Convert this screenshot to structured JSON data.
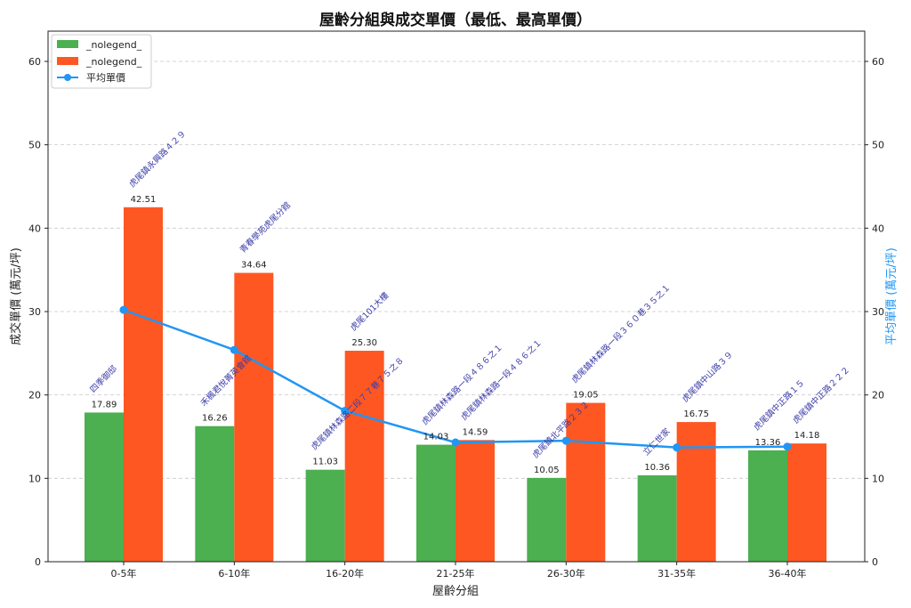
{
  "chart_data": {
    "type": "bar",
    "title": "屋齡分組與成交單價（最低、最高單價）",
    "xlabel": "屋齡分組",
    "ylabel": "成交單價 (萬元/坪)",
    "ylabel_right": "平均單價 (萬元/坪)",
    "ylim": [
      0,
      63.6
    ],
    "y_ticks": [
      0,
      10,
      20,
      30,
      40,
      50,
      60
    ],
    "grid": "horizontal dashed",
    "legend_position": "upper left",
    "categories": [
      "0-5年",
      "6-10年",
      "16-20年",
      "21-25年",
      "26-30年",
      "31-35年",
      "36-40年"
    ],
    "series": [
      {
        "name": "_nolegend_",
        "kind": "bar",
        "role": "最低單價",
        "color": "#4CAF50",
        "values": [
          17.89,
          16.26,
          11.03,
          14.03,
          10.05,
          10.36,
          13.36
        ],
        "labels": [
          "17.89",
          "16.26",
          "11.03",
          "14.03",
          "10.05",
          "10.36",
          "13.36"
        ],
        "annotations": [
          "四季御邸",
          "禾楓君悅菁英會館",
          "虎尾鎮林森路二段７７巷７５之８",
          "虎尾鎮林森路一段４８６之１",
          "虎尾鎮北平路２３２",
          "立仁世家",
          "虎尾鎮中正路１５"
        ]
      },
      {
        "name": "_nolegend_",
        "kind": "bar",
        "role": "最高單價",
        "color": "#FF5722",
        "values": [
          42.51,
          34.64,
          25.3,
          14.59,
          19.05,
          16.75,
          14.18
        ],
        "labels": [
          "42.51",
          "34.64",
          "25.30",
          "14.59",
          "19.05",
          "16.75",
          "14.18"
        ],
        "annotations": [
          "虎尾鎮永興路４２９",
          "青春學苑虎尾分館",
          "虎尾101大樓",
          "虎尾鎮林森路一段４８６之１",
          "虎尾鎮林森路一段３６０巷３５之１",
          "虎尾鎮中山路３９",
          "虎尾鎮中正路２２２"
        ]
      },
      {
        "name": "平均單價",
        "kind": "line",
        "axis": "right",
        "color": "#2196F3",
        "values": [
          30.2,
          25.4,
          18.1,
          14.3,
          14.5,
          13.7,
          13.8
        ]
      }
    ]
  },
  "legend": {
    "items": [
      {
        "label": "_nolegend_",
        "color": "#4CAF50",
        "type": "patch"
      },
      {
        "label": "_nolegend_",
        "color": "#FF5722",
        "type": "patch"
      },
      {
        "label": "平均單價",
        "color": "#2196F3",
        "type": "line-marker"
      }
    ]
  }
}
